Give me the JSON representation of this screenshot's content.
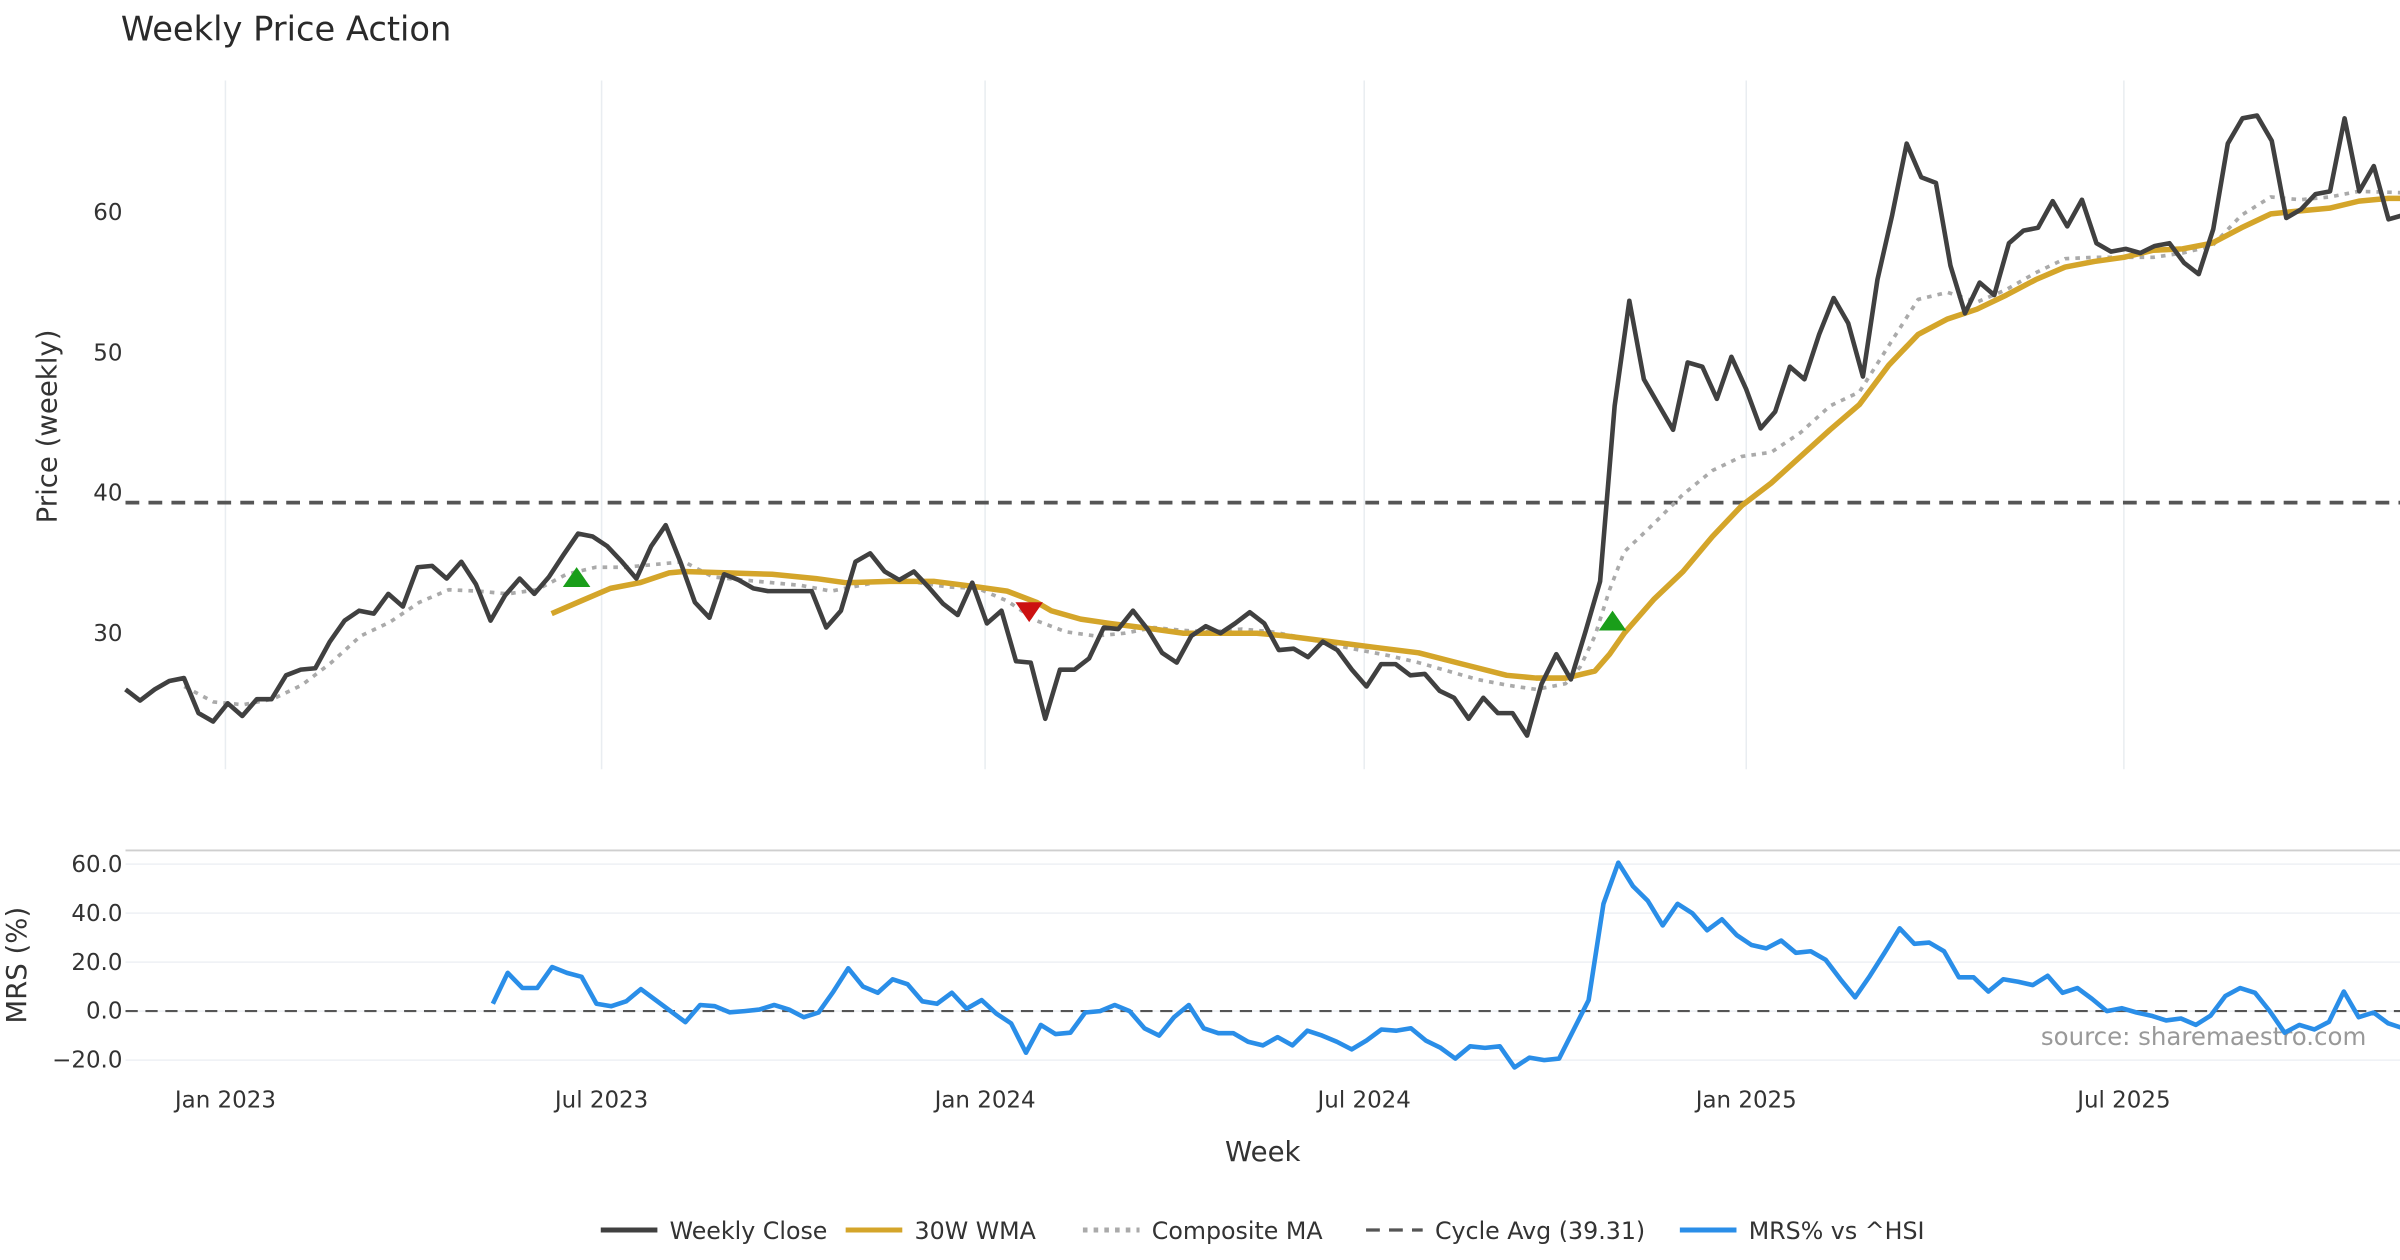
{
  "chart_data": [
    {
      "type": "line",
      "title": "Weekly Price Action",
      "xlabel": "Week",
      "ylabel": "Price (weekly)",
      "x_unit": "week index (0 = mid-Nov 2022)",
      "xlim": [
        0,
        155
      ],
      "ylim": [
        20.3,
        69.4
      ],
      "yticks": [
        30,
        40,
        50,
        60
      ],
      "xticks": [
        {
          "week": 6.8,
          "label": "Jan 2023"
        },
        {
          "week": 32.4,
          "label": "Jul 2023"
        },
        {
          "week": 58.5,
          "label": "Jan 2024"
        },
        {
          "week": 84.3,
          "label": "Jul 2024"
        },
        {
          "week": 110.3,
          "label": "Jan 2025"
        },
        {
          "week": 136.0,
          "label": "Jul 2025"
        }
      ],
      "grid": "vertical",
      "cycle_avg": {
        "value": 39.31,
        "label": "Cycle Avg (39.31)"
      },
      "series": [
        {
          "name": "Weekly Close",
          "color": "#404040",
          "span": [
            0,
            155
          ],
          "values": [
            26.0,
            25.2,
            26.0,
            26.6,
            26.8,
            24.3,
            23.7,
            25.0,
            24.1,
            25.3,
            25.3,
            27.0,
            27.4,
            27.5,
            29.4,
            30.9,
            31.6,
            31.4,
            32.8,
            31.9,
            34.7,
            34.8,
            33.9,
            35.1,
            33.5,
            30.9,
            32.7,
            33.9,
            32.8,
            34.0,
            35.6,
            37.1,
            36.9,
            36.2,
            35.1,
            33.9,
            36.2,
            37.7,
            35.1,
            32.2,
            31.1,
            34.2,
            33.8,
            33.2,
            33.0,
            33.0,
            33.0,
            33.0,
            30.4,
            31.6,
            35.1,
            35.7,
            34.4,
            33.8,
            34.4,
            33.3,
            32.1,
            31.3,
            33.6,
            30.7,
            31.6,
            28.0,
            27.9,
            23.9,
            27.4,
            27.4,
            28.2,
            30.4,
            30.3,
            31.6,
            30.3,
            28.6,
            27.9,
            29.8,
            30.5,
            30.0,
            30.7,
            31.5,
            30.7,
            28.8,
            28.9,
            28.3,
            29.4,
            28.8,
            27.4,
            26.2,
            27.8,
            27.8,
            27.0,
            27.1,
            25.9,
            25.4,
            23.9,
            25.4,
            24.3,
            24.3,
            22.7,
            26.4,
            28.5,
            26.7,
            30.1,
            33.7,
            46.2,
            53.7,
            48.1,
            46.3,
            44.5,
            49.3,
            49.0,
            46.7,
            49.7,
            47.4,
            44.6,
            45.8,
            49.0,
            48.1,
            51.3,
            53.9,
            52.1,
            48.3,
            55.2,
            59.8,
            64.9,
            62.5,
            62.1,
            56.2,
            52.8,
            55.0,
            54.1,
            57.8,
            58.7,
            58.9,
            60.8,
            59.0,
            60.9,
            57.8,
            57.2,
            57.4,
            57.1,
            57.6,
            57.8,
            56.4,
            55.6,
            58.8,
            64.9,
            66.7,
            66.9,
            65.1,
            59.6,
            60.2,
            61.3,
            61.5,
            66.7,
            61.5,
            63.3,
            59.5,
            59.8
          ]
        },
        {
          "name": "30W WMA",
          "color": "#d4a52a",
          "points": [
            [
              29,
              31.4
            ],
            [
              31,
              32.3
            ],
            [
              33,
              33.2
            ],
            [
              35,
              33.6
            ],
            [
              37,
              34.3
            ],
            [
              38,
              34.4
            ],
            [
              41,
              34.3
            ],
            [
              44,
              34.2
            ],
            [
              47,
              33.9
            ],
            [
              49,
              33.6
            ],
            [
              52,
              33.7
            ],
            [
              55,
              33.7
            ],
            [
              58,
              33.3
            ],
            [
              60,
              33.0
            ],
            [
              62,
              32.2
            ],
            [
              63,
              31.6
            ],
            [
              65,
              31.0
            ],
            [
              67,
              30.7
            ],
            [
              70,
              30.3
            ],
            [
              72,
              30.0
            ],
            [
              74,
              30.0
            ],
            [
              77,
              30.0
            ],
            [
              79,
              29.8
            ],
            [
              82,
              29.4
            ],
            [
              85,
              29.0
            ],
            [
              88,
              28.6
            ],
            [
              91,
              27.8
            ],
            [
              94,
              27.0
            ],
            [
              96,
              26.8
            ],
            [
              98,
              26.8
            ],
            [
              100,
              27.3
            ],
            [
              101,
              28.5
            ],
            [
              102,
              30.0
            ],
            [
              104,
              32.4
            ],
            [
              106,
              34.4
            ],
            [
              108,
              36.9
            ],
            [
              110,
              39.1
            ],
            [
              112,
              40.7
            ],
            [
              114,
              42.6
            ],
            [
              116,
              44.5
            ],
            [
              118,
              46.3
            ],
            [
              120,
              49.1
            ],
            [
              122,
              51.3
            ],
            [
              124,
              52.4
            ],
            [
              126,
              53.1
            ],
            [
              128,
              54.1
            ],
            [
              130,
              55.2
            ],
            [
              132,
              56.1
            ],
            [
              134,
              56.5
            ],
            [
              136,
              56.8
            ],
            [
              138,
              57.3
            ],
            [
              140,
              57.4
            ],
            [
              142,
              57.8
            ],
            [
              144,
              58.9
            ],
            [
              146,
              59.9
            ],
            [
              148,
              60.1
            ],
            [
              150,
              60.3
            ],
            [
              152,
              60.8
            ],
            [
              154,
              61.0
            ],
            [
              155,
              61.0
            ]
          ]
        },
        {
          "name": "Composite MA",
          "color": "#aaaaaa",
          "points": [
            [
              4,
              26.2
            ],
            [
              6,
              25.1
            ],
            [
              8,
              24.9
            ],
            [
              10,
              25.3
            ],
            [
              12,
              26.3
            ],
            [
              14,
              27.9
            ],
            [
              16,
              29.8
            ],
            [
              18,
              30.8
            ],
            [
              20,
              32.2
            ],
            [
              22,
              33.1
            ],
            [
              24,
              33.0
            ],
            [
              26,
              32.8
            ],
            [
              28,
              33.1
            ],
            [
              30,
              34.2
            ],
            [
              32,
              34.7
            ],
            [
              34,
              34.7
            ],
            [
              36,
              34.9
            ],
            [
              38,
              35.1
            ],
            [
              40,
              34.0
            ],
            [
              42,
              33.8
            ],
            [
              44,
              33.6
            ],
            [
              46,
              33.4
            ],
            [
              48,
              33.0
            ],
            [
              50,
              33.4
            ],
            [
              52,
              33.8
            ],
            [
              54,
              33.6
            ],
            [
              56,
              33.3
            ],
            [
              58,
              33.2
            ],
            [
              60,
              32.3
            ],
            [
              62,
              30.9
            ],
            [
              64,
              30.1
            ],
            [
              66,
              29.8
            ],
            [
              68,
              30.0
            ],
            [
              70,
              30.4
            ],
            [
              72,
              30.2
            ],
            [
              74,
              30.1
            ],
            [
              76,
              30.3
            ],
            [
              78,
              30.1
            ],
            [
              80,
              29.7
            ],
            [
              82,
              29.2
            ],
            [
              84,
              28.8
            ],
            [
              86,
              28.4
            ],
            [
              88,
              27.9
            ],
            [
              90,
              27.3
            ],
            [
              92,
              26.7
            ],
            [
              94,
              26.3
            ],
            [
              96,
              26.0
            ],
            [
              98,
              26.4
            ],
            [
              99,
              27.6
            ],
            [
              100,
              29.8
            ],
            [
              101,
              33.1
            ],
            [
              102,
              35.8
            ],
            [
              104,
              37.8
            ],
            [
              106,
              39.9
            ],
            [
              108,
              41.6
            ],
            [
              110,
              42.6
            ],
            [
              112,
              42.9
            ],
            [
              114,
              44.3
            ],
            [
              116,
              46.2
            ],
            [
              118,
              47.2
            ],
            [
              120,
              50.5
            ],
            [
              122,
              53.8
            ],
            [
              124,
              54.3
            ],
            [
              126,
              53.6
            ],
            [
              128,
              54.5
            ],
            [
              130,
              55.7
            ],
            [
              132,
              56.7
            ],
            [
              134,
              56.8
            ],
            [
              136,
              56.8
            ],
            [
              138,
              56.8
            ],
            [
              140,
              57.1
            ],
            [
              142,
              57.6
            ],
            [
              144,
              59.8
            ],
            [
              146,
              61.1
            ],
            [
              148,
              60.9
            ],
            [
              150,
              61.1
            ],
            [
              152,
              61.5
            ],
            [
              155,
              61.4
            ]
          ]
        }
      ],
      "signals": [
        {
          "type": "buy",
          "week": 30.7,
          "value": 34.0,
          "color": "#1a9e1a"
        },
        {
          "type": "sell",
          "week": 61.5,
          "value": 31.5,
          "color": "#cc1111"
        },
        {
          "type": "buy",
          "week": 101.2,
          "value": 30.9,
          "color": "#1a9e1a"
        }
      ]
    },
    {
      "type": "line",
      "ylabel": "MRS (%)",
      "xlabel": "Week",
      "ylim": [
        -25,
        65.6
      ],
      "yticks": [
        {
          "v": 60,
          "label": "60.0"
        },
        {
          "v": 40,
          "label": "40.0"
        },
        {
          "v": 20,
          "label": "20.0"
        },
        {
          "v": 0,
          "label": "0.0"
        },
        {
          "v": -20,
          "label": "−20.0"
        }
      ],
      "zero_line": 0,
      "series": [
        {
          "name": "MRS% vs ^HSI",
          "color": "#2a8ee8",
          "span": [
            25,
            155
          ],
          "values": [
            3,
            15.6,
            9.4,
            9.4,
            18,
            15.6,
            14,
            3,
            2,
            4,
            9,
            4.5,
            0,
            -4.5,
            2.5,
            2,
            -0.5,
            0,
            0.6,
            2.5,
            0.6,
            -2.5,
            -0.6,
            8,
            17.5,
            10,
            7.5,
            13,
            11,
            4,
            3,
            7.5,
            1,
            4.5,
            -1,
            -5,
            -17,
            -5.6,
            -9.4,
            -8.8,
            -0.6,
            0,
            2.5,
            0,
            -7,
            -10,
            -2.5,
            2.5,
            -7,
            -9,
            -9,
            -12.5,
            -14,
            -10.6,
            -14,
            -8,
            -10,
            -12.5,
            -15.6,
            -12,
            -7.5,
            -8,
            -7,
            -12,
            -15,
            -19.4,
            -14.4,
            -15,
            -14.4,
            -23,
            -19,
            -20,
            -19.4,
            -7.5,
            4.5,
            43.8,
            60.6,
            51,
            45,
            35,
            43.8,
            40,
            33,
            37.5,
            31,
            27,
            25.6,
            28.8,
            23.8,
            24.4,
            21,
            13,
            5.6,
            14.4,
            24,
            33.8,
            27.5,
            28,
            24.4,
            13.8,
            13.8,
            8,
            13,
            12,
            10.6,
            14.4,
            7.5,
            9.4,
            5,
            0,
            1.2,
            -0.6,
            -1.9,
            -3.8,
            -3,
            -5.6,
            -1.9,
            6.2,
            9.4,
            7.5,
            0,
            -8.8,
            -5.6,
            -7.5,
            -4.4,
            8,
            -2.5,
            -0.6,
            -5,
            -7
          ]
        }
      ],
      "annotation": "source: sharemaestro.com"
    }
  ],
  "legend": {
    "placement": "bottom-center",
    "items": [
      {
        "label": "Weekly Close",
        "color": "#404040",
        "style": "solid"
      },
      {
        "label": "30W WMA",
        "color": "#d4a52a",
        "style": "solid"
      },
      {
        "label": "Composite MA",
        "color": "#aaaaaa",
        "style": "dotted"
      },
      {
        "label": "Cycle Avg (39.31)",
        "color": "#555555",
        "style": "dashed"
      },
      {
        "label": "MRS% vs ^HSI",
        "color": "#2a8ee8",
        "style": "solid"
      }
    ]
  }
}
